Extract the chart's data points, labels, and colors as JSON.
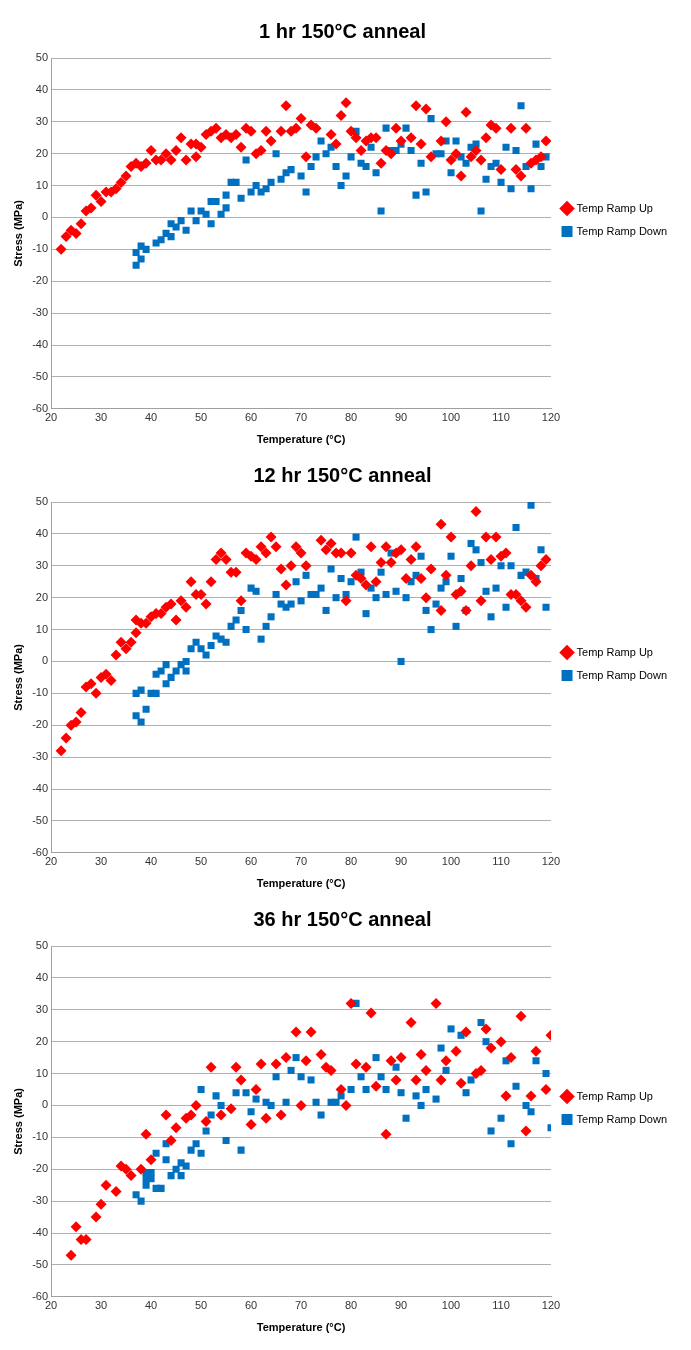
{
  "chart_data": [
    {
      "type": "scatter",
      "title": "1 hr 150°C anneal",
      "xlabel": "Temperature (°C)",
      "ylabel": "Stress (MPa)",
      "xlim": [
        20,
        120
      ],
      "xticks": [
        20,
        30,
        40,
        50,
        60,
        70,
        80,
        90,
        100,
        110,
        120
      ],
      "ylim": [
        -60,
        50
      ],
      "yticks": [
        -60,
        -50,
        -40,
        -30,
        -20,
        -10,
        0,
        10,
        20,
        30,
        40,
        50
      ],
      "grid": "y",
      "legend": "right",
      "series": [
        {
          "name": "Temp Ramp Up",
          "color": "#ff0000",
          "marker": "diamond",
          "x": [
            22,
            23,
            24,
            25,
            26,
            27,
            28,
            29,
            30,
            31,
            32,
            33,
            34,
            35,
            36,
            37,
            38,
            39,
            40,
            41,
            42,
            43,
            44,
            45,
            46,
            47,
            48,
            49,
            49,
            50,
            51,
            52,
            53,
            54,
            55,
            56,
            57,
            58,
            59,
            60,
            61,
            62,
            63,
            64,
            66,
            67,
            68,
            69,
            70,
            71,
            72,
            73,
            76,
            77,
            78,
            79,
            80,
            81,
            82,
            83,
            84,
            85,
            86,
            87,
            88,
            89,
            90,
            92,
            93,
            94,
            95,
            96,
            98,
            99,
            100,
            101,
            102,
            103,
            104,
            105,
            106,
            107,
            108,
            109,
            110,
            112,
            113,
            114,
            115,
            116,
            117,
            118,
            119
          ],
          "values": [
            -10,
            -6,
            -4,
            -5,
            -2,
            2,
            3,
            7,
            5,
            8,
            8,
            9,
            11,
            13,
            16,
            17,
            16,
            17,
            21,
            18,
            18,
            20,
            18,
            21,
            25,
            18,
            23,
            23,
            19,
            22,
            26,
            27,
            28,
            25,
            26,
            25,
            26,
            22,
            28,
            27,
            20,
            21,
            27,
            24,
            27,
            35,
            27,
            28,
            31,
            19,
            29,
            28,
            26,
            23,
            32,
            36,
            27,
            25,
            21,
            24,
            25,
            25,
            17,
            21,
            20,
            28,
            24,
            25,
            35,
            23,
            34,
            19,
            24,
            30,
            18,
            20,
            13,
            33,
            19,
            21,
            18,
            25,
            29,
            28,
            15,
            28,
            15,
            13,
            28,
            17,
            18,
            19,
            24
          ]
        },
        {
          "name": "Temp Ramp Down",
          "color": "#0070c0",
          "marker": "square",
          "x": [
            37,
            37,
            38,
            38,
            39,
            41,
            42,
            43,
            44,
            44,
            45,
            46,
            47,
            48,
            49,
            50,
            51,
            52,
            52,
            53,
            54,
            55,
            55,
            56,
            57,
            58,
            59,
            60,
            61,
            62,
            63,
            64,
            65,
            66,
            67,
            68,
            70,
            71,
            72,
            73,
            74,
            75,
            76,
            77,
            78,
            79,
            80,
            81,
            82,
            83,
            84,
            85,
            86,
            87,
            88,
            89,
            90,
            91,
            92,
            93,
            94,
            95,
            96,
            97,
            98,
            99,
            100,
            101,
            102,
            103,
            104,
            105,
            106,
            107,
            108,
            109,
            110,
            111,
            112,
            113,
            114,
            115,
            116,
            117,
            118,
            119
          ],
          "values": [
            -11,
            -15,
            -9,
            -13,
            -10,
            -8,
            -7,
            -5,
            -6,
            -2,
            -3,
            -1,
            -4,
            2,
            -1,
            2,
            1,
            -2,
            5,
            5,
            1,
            3,
            7,
            11,
            11,
            6,
            18,
            8,
            10,
            8,
            9,
            11,
            20,
            12,
            14,
            15,
            13,
            8,
            16,
            19,
            24,
            20,
            22,
            16,
            10,
            13,
            19,
            27,
            17,
            16,
            22,
            14,
            2,
            28,
            21,
            21,
            23,
            28,
            21,
            7,
            17,
            8,
            31,
            20,
            20,
            24,
            14,
            24,
            19,
            17,
            22,
            23,
            2,
            12,
            16,
            17,
            11,
            22,
            9,
            21,
            35,
            16,
            9,
            23,
            16,
            19
          ]
        }
      ]
    },
    {
      "type": "scatter",
      "title": "12 hr 150°C anneal",
      "xlabel": "Temperature (°C)",
      "ylabel": "Stress (MPa)",
      "xlim": [
        20,
        120
      ],
      "xticks": [
        20,
        30,
        40,
        50,
        60,
        70,
        80,
        90,
        100,
        110,
        120
      ],
      "ylim": [
        -60,
        50
      ],
      "yticks": [
        -60,
        -50,
        -40,
        -30,
        -20,
        -10,
        0,
        10,
        20,
        30,
        40,
        50
      ],
      "grid": "y",
      "legend": "right",
      "series": [
        {
          "name": "Temp Ramp Up",
          "color": "#ff0000",
          "marker": "diamond",
          "x": [
            22,
            23,
            24,
            25,
            26,
            27,
            28,
            29,
            30,
            31,
            32,
            33,
            34,
            35,
            36,
            37,
            37,
            38,
            39,
            40,
            41,
            42,
            43,
            44,
            45,
            46,
            47,
            48,
            49,
            50,
            51,
            52,
            53,
            54,
            55,
            56,
            57,
            58,
            59,
            60,
            61,
            62,
            63,
            64,
            65,
            66,
            67,
            68,
            69,
            70,
            71,
            74,
            75,
            76,
            77,
            78,
            79,
            80,
            81,
            82,
            83,
            84,
            85,
            86,
            87,
            88,
            89,
            90,
            91,
            92,
            93,
            94,
            95,
            96,
            98,
            98,
            99,
            100,
            101,
            102,
            103,
            104,
            105,
            106,
            107,
            108,
            109,
            110,
            111,
            112,
            113,
            114,
            115,
            116,
            117,
            118,
            119
          ],
          "values": [
            -28,
            -24,
            -20,
            -19,
            -16,
            -8,
            -7,
            -10,
            -5,
            -4,
            -6,
            2,
            6,
            4,
            6,
            9,
            13,
            12,
            12,
            14,
            15,
            15,
            17,
            18,
            13,
            19,
            17,
            25,
            21,
            21,
            18,
            25,
            32,
            34,
            32,
            28,
            28,
            19,
            34,
            33,
            32,
            36,
            34,
            39,
            36,
            29,
            24,
            30,
            36,
            34,
            30,
            38,
            35,
            37,
            34,
            34,
            19,
            34,
            27,
            26,
            24,
            36,
            25,
            31,
            36,
            31,
            34,
            35,
            26,
            32,
            36,
            26,
            20,
            29,
            16,
            43,
            27,
            39,
            21,
            22,
            16,
            30,
            47,
            19,
            39,
            32,
            39,
            33,
            34,
            21,
            21,
            19,
            17,
            27,
            25,
            30,
            32
          ]
        },
        {
          "name": "Temp Ramp Down",
          "color": "#0070c0",
          "marker": "square",
          "x": [
            37,
            37,
            38,
            38,
            39,
            40,
            41,
            41,
            42,
            43,
            43,
            44,
            45,
            46,
            47,
            47,
            48,
            49,
            50,
            51,
            52,
            53,
            54,
            55,
            56,
            57,
            58,
            59,
            60,
            61,
            62,
            63,
            64,
            65,
            66,
            67,
            68,
            69,
            70,
            71,
            72,
            73,
            74,
            75,
            76,
            77,
            78,
            79,
            80,
            81,
            82,
            83,
            84,
            85,
            86,
            87,
            88,
            89,
            90,
            91,
            92,
            93,
            94,
            95,
            96,
            97,
            98,
            99,
            100,
            101,
            102,
            103,
            104,
            105,
            106,
            107,
            108,
            109,
            110,
            111,
            112,
            113,
            114,
            115,
            116,
            117,
            118,
            119
          ],
          "values": [
            -10,
            -17,
            -9,
            -19,
            -15,
            -10,
            -10,
            -4,
            -3,
            -1,
            -7,
            -5,
            -3,
            -1,
            0,
            -3,
            4,
            6,
            4,
            2,
            5,
            8,
            7,
            6,
            11,
            13,
            16,
            10,
            23,
            22,
            7,
            11,
            14,
            21,
            18,
            17,
            18,
            25,
            19,
            27,
            21,
            21,
            23,
            16,
            29,
            20,
            26,
            21,
            25,
            39,
            28,
            15,
            23,
            20,
            28,
            21,
            34,
            22,
            0,
            20,
            25,
            27,
            33,
            16,
            10,
            18,
            23,
            25,
            33,
            11,
            26,
            16,
            37,
            35,
            31,
            22,
            14,
            23,
            30,
            17,
            30,
            42,
            27,
            28,
            49,
            26,
            35,
            17
          ]
        }
      ]
    },
    {
      "type": "scatter",
      "title": "36 hr 150°C anneal",
      "xlabel": "Temperature (°C)",
      "ylabel": "Stress (MPa)",
      "xlim": [
        20,
        120
      ],
      "xticks": [
        20,
        30,
        40,
        50,
        60,
        70,
        80,
        90,
        100,
        110,
        120
      ],
      "ylim": [
        -60,
        50
      ],
      "yticks": [
        -60,
        -50,
        -40,
        -30,
        -20,
        -10,
        0,
        10,
        20,
        30,
        40,
        50
      ],
      "grid": "y",
      "legend": "right",
      "series": [
        {
          "name": "Temp Ramp Up",
          "color": "#ff0000",
          "marker": "diamond",
          "x": [
            24,
            25,
            26,
            27,
            29,
            30,
            31,
            33,
            34,
            35,
            36,
            38,
            39,
            40,
            43,
            44,
            45,
            47,
            48,
            49,
            51,
            52,
            54,
            56,
            57,
            58,
            60,
            61,
            62,
            63,
            65,
            66,
            67,
            69,
            70,
            71,
            72,
            74,
            75,
            76,
            78,
            79,
            80,
            81,
            83,
            84,
            85,
            87,
            88,
            89,
            90,
            92,
            93,
            94,
            95,
            97,
            98,
            99,
            101,
            102,
            103,
            105,
            106,
            107,
            108,
            110,
            111,
            112,
            114,
            115,
            116,
            117,
            119,
            120
          ],
          "values": [
            -47,
            -38,
            -42,
            -42,
            -35,
            -31,
            -25,
            -27,
            -19,
            -20,
            -22,
            -20,
            -9,
            -17,
            -3,
            -11,
            -7,
            -4,
            -3,
            0,
            -5,
            12,
            -3,
            -1,
            12,
            8,
            -6,
            5,
            13,
            -4,
            13,
            -3,
            15,
            23,
            0,
            14,
            23,
            16,
            12,
            11,
            5,
            0,
            32,
            13,
            12,
            29,
            6,
            -9,
            14,
            8,
            15,
            26,
            8,
            16,
            11,
            32,
            8,
            14,
            17,
            7,
            23,
            10,
            11,
            24,
            18,
            20,
            3,
            15,
            28,
            -8,
            3,
            17,
            5,
            22
          ]
        },
        {
          "name": "Temp Ramp Down",
          "color": "#0070c0",
          "marker": "square",
          "x": [
            37,
            38,
            39,
            39,
            39,
            40,
            40,
            41,
            41,
            42,
            43,
            43,
            44,
            45,
            46,
            46,
            47,
            48,
            49,
            50,
            50,
            51,
            52,
            53,
            54,
            55,
            57,
            58,
            59,
            60,
            61,
            63,
            64,
            65,
            67,
            68,
            69,
            70,
            72,
            73,
            74,
            76,
            77,
            78,
            80,
            81,
            82,
            83,
            85,
            86,
            87,
            89,
            90,
            91,
            93,
            94,
            95,
            97,
            98,
            99,
            100,
            102,
            103,
            104,
            106,
            107,
            108,
            110,
            111,
            112,
            113,
            115,
            116,
            117,
            119,
            120
          ],
          "values": [
            -28,
            -30,
            -25,
            -23,
            -21,
            -21,
            -23,
            -15,
            -26,
            -26,
            -12,
            -17,
            -22,
            -20,
            -22,
            -18,
            -19,
            -14,
            -12,
            -15,
            5,
            -8,
            -3,
            3,
            0,
            -11,
            4,
            -14,
            4,
            -2,
            2,
            1,
            0,
            9,
            1,
            11,
            15,
            9,
            8,
            1,
            -3,
            1,
            1,
            3,
            5,
            32,
            9,
            5,
            15,
            9,
            5,
            12,
            4,
            -4,
            3,
            0,
            5,
            2,
            18,
            11,
            24,
            22,
            4,
            8,
            26,
            20,
            -8,
            -4,
            14,
            -12,
            6,
            0,
            -2,
            14,
            10,
            -7
          ]
        }
      ]
    }
  ]
}
